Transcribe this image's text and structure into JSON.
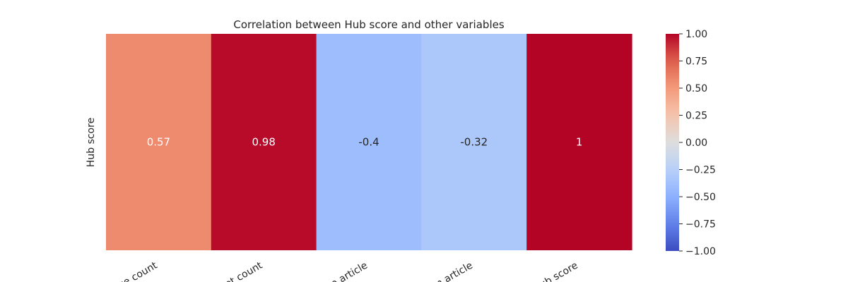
{
  "chart_data": {
    "type": "heatmap",
    "title": "Correlation between Hub score and other variables",
    "ylabel": "Hub score",
    "xlabel": "",
    "x_tick_labels": [
      "ce count",
      "et count",
      "o article",
      "m article",
      "ub score"
    ],
    "values": [
      0.57,
      0.98,
      -0.4,
      -0.32,
      1
    ],
    "annotations": [
      "0.57",
      "0.98",
      "-0.4",
      "-0.32",
      "1"
    ],
    "colormap": "coolwarm",
    "vmin": -1,
    "vmax": 1,
    "colorbar_ticks": [
      1.0,
      0.75,
      0.5,
      0.25,
      0.0,
      -0.25,
      -0.5,
      -0.75,
      -1.0
    ],
    "colorbar_tick_labels": [
      "1.00",
      "0.75",
      "0.50",
      "0.25",
      "0.00",
      "−0.25",
      "−0.50",
      "−0.75",
      "−1.00"
    ],
    "grid": false
  }
}
